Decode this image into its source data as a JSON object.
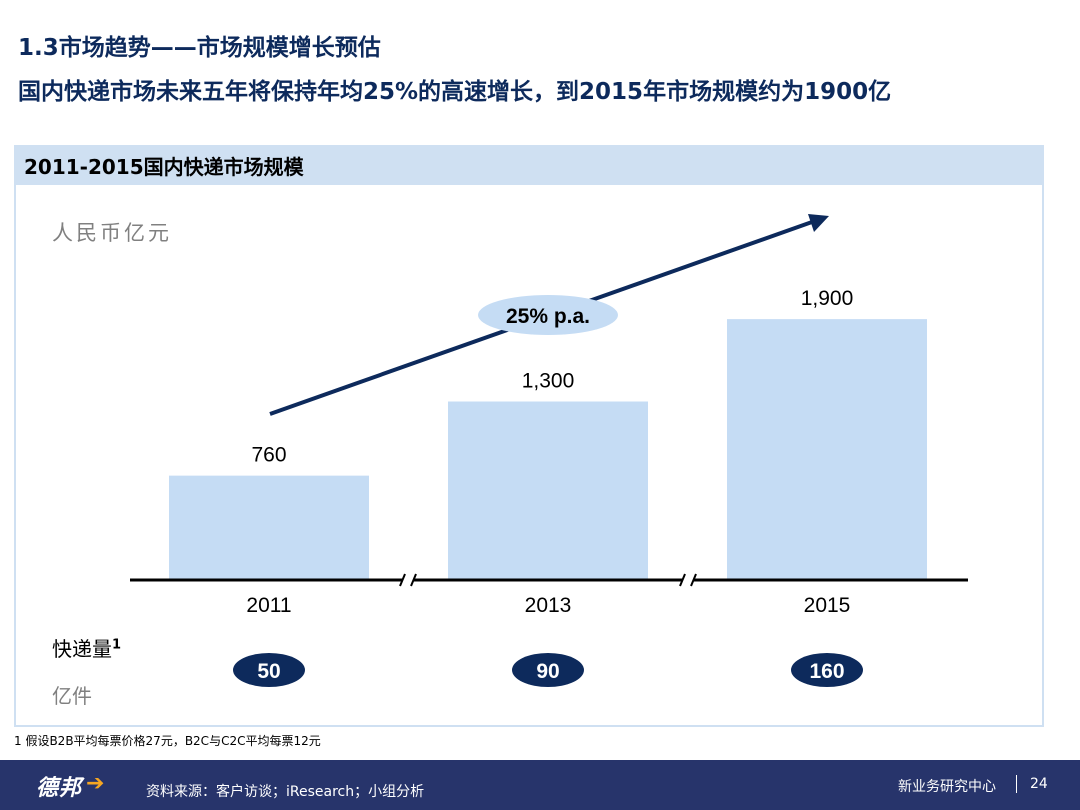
{
  "slide": {
    "title": "1.3市场趋势——市场规模增长预估",
    "headline": "国内快递市场未来五年将保持年均25%的高速增长，到2015年市场规模约为1900亿",
    "panel_title": "2011-2015国内快递市场规模",
    "unit_label": "人民币亿元",
    "volume_label": "快递量",
    "volume_sup": "1",
    "volume_unit": "亿件",
    "footnote": "1 假设B2B平均每票价格27元，B2C与C2C平均每票12元"
  },
  "footer": {
    "logo_text": "德邦",
    "source": "资料来源：客户访谈；iResearch；小组分析",
    "department": "新业务研究中心",
    "page_number": "24"
  },
  "colors": {
    "bar": "#c5dcf4",
    "title": "#0d2a5c",
    "arrow": "#0d2a5c",
    "growth_ellipse": "#c5dcf4",
    "volume_ellipse": "#0d2a5c",
    "footer_bg": "#27346b"
  },
  "chart_data": {
    "type": "bar",
    "categories": [
      "2011",
      "2013",
      "2015"
    ],
    "values": [
      760,
      1300,
      1900
    ],
    "value_labels": [
      "760",
      "1,300",
      "1,900"
    ],
    "ylabel": "人民币亿元",
    "ylim": [
      0,
      2000
    ],
    "axis_breaks": true,
    "growth_annotation": "25% p.a.",
    "volumes": {
      "label": "快递量",
      "unit": "亿件",
      "values": [
        50,
        90,
        160
      ],
      "value_labels": [
        "50",
        "90",
        "160"
      ]
    }
  }
}
